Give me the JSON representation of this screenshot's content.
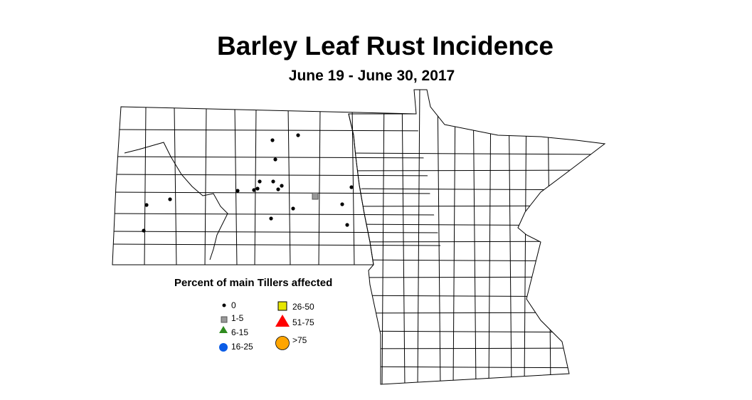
{
  "title": "Barley Leaf Rust Incidence",
  "subtitle": "June 19 - June 30, 2017",
  "legend": {
    "title": "Percent of main Tillers affected",
    "items": [
      {
        "label": "0",
        "symbol": "small-dot",
        "color": "#000000"
      },
      {
        "label": "1-5",
        "symbol": "square",
        "color": "#999999"
      },
      {
        "label": "6-15",
        "symbol": "triangle",
        "color": "#2e8b1e"
      },
      {
        "label": "16-25",
        "symbol": "circle",
        "color": "#0a5ce6"
      },
      {
        "label": "26-50",
        "symbol": "square",
        "color": "#e6e600"
      },
      {
        "label": "51-75",
        "symbol": "triangle",
        "color": "#ff0000"
      },
      {
        "label": ">75",
        "symbol": "circle",
        "color": "#ffa500"
      }
    ]
  },
  "observations": [
    "0",
    "0",
    "0",
    "0",
    "0",
    "0",
    "0",
    "0",
    "0",
    "0",
    "0",
    "0",
    "0",
    "0",
    "0",
    "0",
    "0",
    "0",
    "1-5"
  ]
}
